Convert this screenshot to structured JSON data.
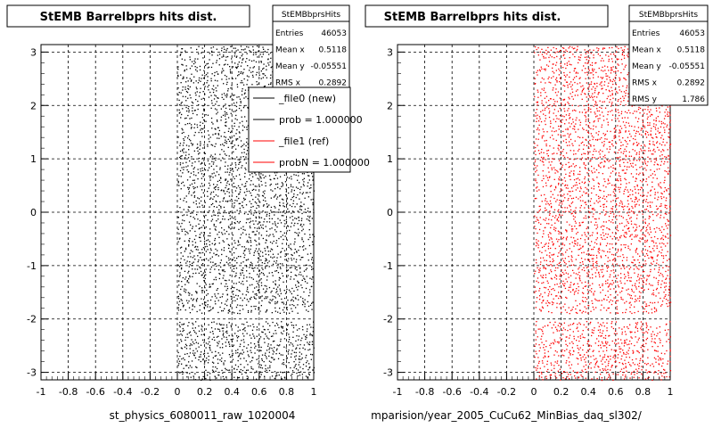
{
  "chart_data": [
    {
      "type": "scatter",
      "title": "StEMB Barrelbprs hits dist.",
      "xlabel": "st_physics_6080011_raw_1020004",
      "ylabel": "",
      "xlim": [
        -1,
        1
      ],
      "ylim": [
        -3.14,
        3.14
      ],
      "x_ticks": [
        "-1",
        "-0.8",
        "-0.6",
        "-0.4",
        "-0.2",
        "0",
        "0.2",
        "0.4",
        "0.6",
        "0.8",
        "1"
      ],
      "y_ticks": [
        "-3",
        "-2",
        "-1",
        "0",
        "1",
        "2",
        "3"
      ],
      "grid": true,
      "marker_color": "#000000",
      "occupied_x_range": [
        0,
        1
      ],
      "gap_y_range": [
        -2.0,
        -1.88
      ],
      "stats": {
        "name": "StEMBbprsHits",
        "rows": [
          {
            "label": "Entries",
            "value": "46053"
          },
          {
            "label": "Mean x",
            "value": "0.5118"
          },
          {
            "label": "Mean y",
            "value": "-0.05551"
          },
          {
            "label": "RMS x",
            "value": "0.2892"
          }
        ]
      },
      "legend": {
        "placement": "top-right",
        "entries": [
          {
            "label": "_file0 (new)",
            "color": "#000000"
          },
          {
            "label": "prob = 1.000000",
            "color": "#000000"
          },
          {
            "label": "_file1 (ref)",
            "color": "#ff0000"
          },
          {
            "label": "probN = 1.000000",
            "color": "#ff0000"
          }
        ]
      }
    },
    {
      "type": "scatter",
      "title": "StEMB Barrelbprs hits dist.",
      "xlabel": "mparision/year_2005_CuCu62_MinBias_daq_sl302/",
      "ylabel": "",
      "xlim": [
        -1,
        1
      ],
      "ylim": [
        -3.14,
        3.14
      ],
      "x_ticks": [
        "-1",
        "-0.8",
        "-0.6",
        "-0.4",
        "-0.2",
        "0",
        "0.2",
        "0.4",
        "0.6",
        "0.8",
        "1"
      ],
      "y_ticks": [
        "-3",
        "-2",
        "-1",
        "0",
        "1",
        "2",
        "3"
      ],
      "grid": true,
      "marker_color": "#ff0000",
      "occupied_x_range": [
        0,
        1
      ],
      "gap_y_range": [
        -2.0,
        -1.88
      ],
      "stats": {
        "name": "StEMBbprsHits",
        "rows": [
          {
            "label": "Entries",
            "value": "46053"
          },
          {
            "label": "Mean x",
            "value": "0.5118"
          },
          {
            "label": "Mean y",
            "value": "-0.05551"
          },
          {
            "label": "RMS x",
            "value": "0.2892"
          },
          {
            "label": "RMS y",
            "value": "1.786"
          }
        ]
      }
    }
  ]
}
